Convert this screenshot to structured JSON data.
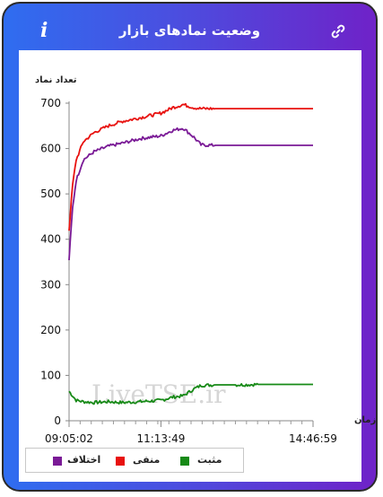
{
  "header": {
    "title": "وضعیت نمادهای بازار",
    "info_glyph": "i",
    "info_icon": "info-icon",
    "link_icon": "link-icon"
  },
  "watermark": "LiveTSE.ir",
  "colors": {
    "manfi": "#e8110f",
    "ekhtelaf": "#7a1a96",
    "mosbat": "#178a17"
  },
  "chart_data": {
    "type": "line",
    "ylabel": "تعداد نماد",
    "xlabel": "زمان",
    "ylim": [
      0,
      700
    ],
    "yticks": [
      0,
      100,
      200,
      300,
      400,
      500,
      600,
      700
    ],
    "x_tick_labels": [
      "09:05:02",
      "11:13:49",
      "14:46:59"
    ],
    "x": [
      "09:05:02",
      "09:10",
      "09:15",
      "09:25",
      "09:40",
      "10:00",
      "10:20",
      "10:45",
      "11:13:49",
      "11:30",
      "11:45",
      "12:00",
      "12:10",
      "12:30",
      "13:00",
      "13:30",
      "14:00",
      "14:30",
      "14:46:59"
    ],
    "series": [
      {
        "name": "منفی",
        "color": "#e8110f",
        "values": [
          420,
          520,
          575,
          615,
          635,
          650,
          660,
          668,
          678,
          690,
          697,
          690,
          688,
          688,
          688,
          688,
          688,
          688,
          688
        ]
      },
      {
        "name": "اختلاف",
        "color": "#7a1a96",
        "values": [
          355,
          470,
          530,
          575,
          593,
          605,
          612,
          622,
          628,
          640,
          645,
          625,
          608,
          607,
          607,
          607,
          607,
          607,
          607
        ]
      },
      {
        "name": "مثبت",
        "color": "#178a17",
        "values": [
          65,
          55,
          45,
          42,
          40,
          42,
          40,
          42,
          45,
          52,
          55,
          70,
          78,
          79,
          79,
          80,
          80,
          80,
          80
        ]
      }
    ],
    "legend": [
      "مثبت",
      "منفی",
      "اختلاف"
    ]
  }
}
